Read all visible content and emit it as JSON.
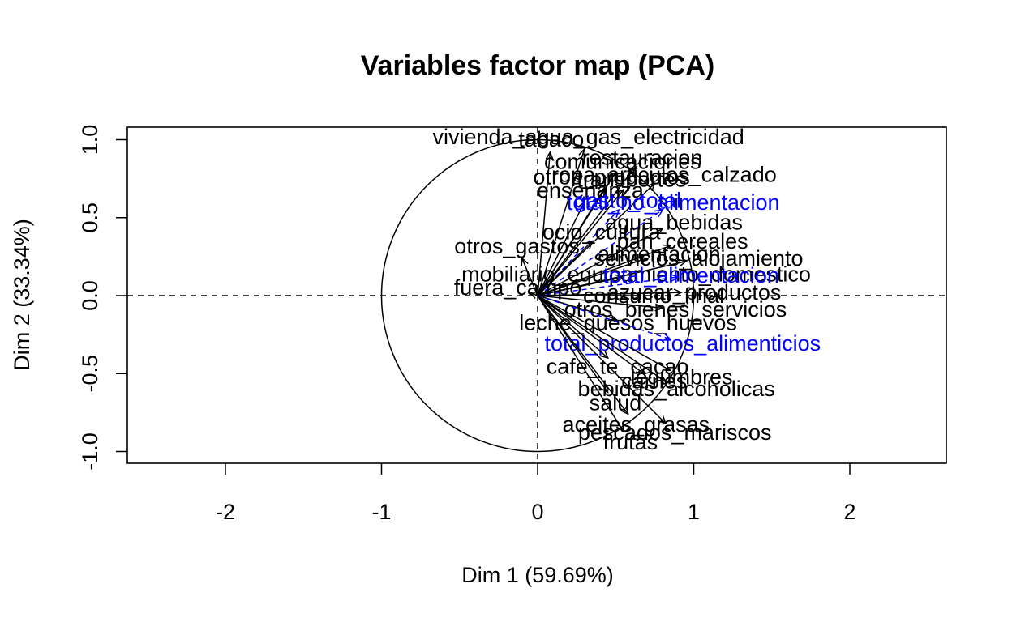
{
  "chart_data": {
    "type": "scatter",
    "title": "Variables factor map (PCA)",
    "xlabel": "Dim 1 (59.69%)",
    "ylabel": "Dim 2 (33.34%)",
    "xlim": [
      -2.63,
      2.63
    ],
    "ylim": [
      -1.08,
      1.08
    ],
    "x_ticks": [
      "-2",
      "-1",
      "0",
      "1",
      "2"
    ],
    "y_ticks": [
      "-1.0",
      "-0.5",
      "0.0",
      "0.5",
      "1.0"
    ],
    "unit_circle": true,
    "reference_lines": "dashed at x=0 and y=0",
    "colors": {
      "active": "#000000",
      "supplementary": "#0000ff"
    },
    "variables": [
      {
        "label": "vivienda_agua_gas_electricidad",
        "x": 0.3,
        "y": 0.94,
        "supplementary": false
      },
      {
        "label": "tabaco",
        "x": 0.08,
        "y": 0.92,
        "supplementary": false
      },
      {
        "label": "restauracion",
        "x": 0.62,
        "y": 0.82,
        "supplementary": false
      },
      {
        "label": "comunicaciones",
        "x": 0.5,
        "y": 0.79,
        "supplementary": false
      },
      {
        "label": "ropa_articulos_calzado",
        "x": 0.75,
        "y": 0.72,
        "supplementary": false
      },
      {
        "label": "otros_productos",
        "x": 0.43,
        "y": 0.69,
        "supplementary": false
      },
      {
        "label": "transportes",
        "x": 0.55,
        "y": 0.68,
        "supplementary": false
      },
      {
        "label": "ensenanza",
        "x": 0.3,
        "y": 0.6,
        "supplementary": false
      },
      {
        "label": "gasto_total",
        "x": 0.52,
        "y": 0.55,
        "supplementary": true
      },
      {
        "label": "total_no_alimentacion",
        "x": 0.8,
        "y": 0.55,
        "supplementary": true
      },
      {
        "label": "agua_bebidas",
        "x": 0.8,
        "y": 0.43,
        "supplementary": false
      },
      {
        "label": "ocio_cultura",
        "x": 0.35,
        "y": 0.35,
        "supplementary": false
      },
      {
        "label": "pan_cereales",
        "x": 0.85,
        "y": 0.32,
        "supplementary": false
      },
      {
        "label": "otros_gastos",
        "x": -0.1,
        "y": 0.24,
        "supplementary": false
      },
      {
        "label": "alimentacion",
        "x": 0.7,
        "y": 0.24,
        "supplementary": false
      },
      {
        "label": "servicios_alojamiento",
        "x": 0.95,
        "y": 0.22,
        "supplementary": false
      },
      {
        "label": "mobiliario_equipamiento_domestico",
        "x": 0.55,
        "y": 0.12,
        "supplementary": false
      },
      {
        "label": "total_alimentacion",
        "x": 0.9,
        "y": 0.12,
        "supplementary": true
      },
      {
        "label": "azucar_productos",
        "x": 0.92,
        "y": 0.02,
        "supplementary": false
      },
      {
        "label": "fuera_campo",
        "x": -0.05,
        "y": 0.02,
        "supplementary": false
      },
      {
        "label": "consumo_final",
        "x": 0.66,
        "y": 0.0,
        "supplementary": false
      },
      {
        "label": "otros_bienes_servicios",
        "x": 0.8,
        "y": -0.08,
        "supplementary": false
      },
      {
        "label": "leche_quesos_huevos",
        "x": 0.5,
        "y": -0.15,
        "supplementary": false
      },
      {
        "label": "total_productos_alimenticios",
        "x": 0.85,
        "y": -0.28,
        "supplementary": true
      },
      {
        "label": "cafe_te_cacao",
        "x": 0.45,
        "y": -0.4,
        "supplementary": false
      },
      {
        "label": "legumbres",
        "x": 0.85,
        "y": -0.48,
        "supplementary": false
      },
      {
        "label": "carnes",
        "x": 0.68,
        "y": -0.5,
        "supplementary": false
      },
      {
        "label": "bebidas_alcoholicas",
        "x": 0.82,
        "y": -0.55,
        "supplementary": false
      },
      {
        "label": "salud",
        "x": 0.45,
        "y": -0.62,
        "supplementary": false
      },
      {
        "label": "aceites_grasas",
        "x": 0.58,
        "y": -0.76,
        "supplementary": false
      },
      {
        "label": "pescados_mariscos",
        "x": 0.82,
        "y": -0.82,
        "supplementary": false
      },
      {
        "label": "frutas",
        "x": 0.55,
        "y": -0.87,
        "supplementary": false
      }
    ]
  }
}
